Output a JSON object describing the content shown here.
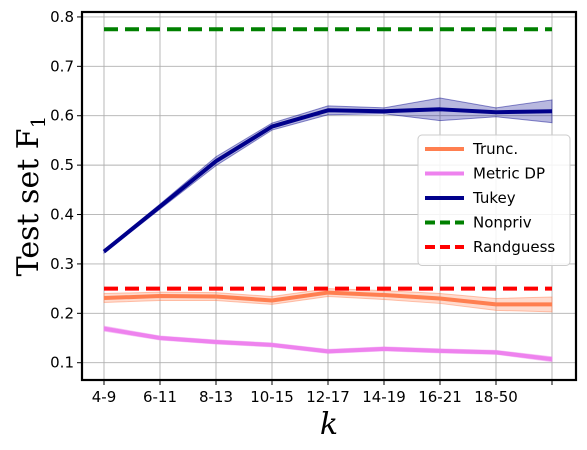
{
  "chart_data": {
    "type": "line",
    "title": "",
    "xlabel": "k",
    "ylabel": "Test set F",
    "ylabel_subscript": "1",
    "categories": [
      "4-9",
      "6-11",
      "8-13",
      "10-15",
      "12-17",
      "14-19",
      "16-21",
      "18-50",
      ""
    ],
    "ylim": [
      0.065,
      0.81
    ],
    "yticks": [
      "0.1",
      "0.2",
      "0.3",
      "0.4",
      "0.5",
      "0.6",
      "0.7",
      "0.8"
    ],
    "grid": true,
    "legend_position": "center-right",
    "series": [
      {
        "name": "Trunc.",
        "color": "#ff7f50",
        "values": [
          0.231,
          0.235,
          0.234,
          0.226,
          0.242,
          0.237,
          0.23,
          0.218,
          0.218
        ],
        "band_low": [
          0.222,
          0.226,
          0.226,
          0.218,
          0.234,
          0.228,
          0.22,
          0.206,
          0.203
        ],
        "band_high": [
          0.24,
          0.243,
          0.242,
          0.234,
          0.25,
          0.246,
          0.24,
          0.23,
          0.233
        ]
      },
      {
        "name": "Metric DP",
        "color": "#ee82ee",
        "values": [
          0.169,
          0.15,
          0.142,
          0.136,
          0.123,
          0.128,
          0.124,
          0.121,
          0.107
        ],
        "band_low": [
          0.164,
          0.146,
          0.138,
          0.132,
          0.119,
          0.124,
          0.12,
          0.117,
          0.102
        ],
        "band_high": [
          0.174,
          0.154,
          0.146,
          0.14,
          0.127,
          0.132,
          0.128,
          0.125,
          0.112
        ]
      },
      {
        "name": "Tukey",
        "color": "#00008b",
        "values": [
          0.325,
          0.416,
          0.508,
          0.578,
          0.611,
          0.609,
          0.613,
          0.607,
          0.609
        ],
        "band_low": [
          0.322,
          0.411,
          0.499,
          0.571,
          0.602,
          0.604,
          0.59,
          0.598,
          0.586
        ],
        "band_high": [
          0.328,
          0.421,
          0.517,
          0.585,
          0.62,
          0.616,
          0.636,
          0.616,
          0.632
        ]
      },
      {
        "name": "Nonpriv",
        "color": "#008000",
        "dashed": true,
        "values": [
          0.775,
          0.775,
          0.775,
          0.775,
          0.775,
          0.775,
          0.775,
          0.775,
          0.775
        ]
      },
      {
        "name": "Randguess",
        "color": "#ff0000",
        "dashed": true,
        "values": [
          0.25,
          0.25,
          0.25,
          0.25,
          0.25,
          0.25,
          0.25,
          0.25,
          0.25
        ]
      }
    ]
  }
}
